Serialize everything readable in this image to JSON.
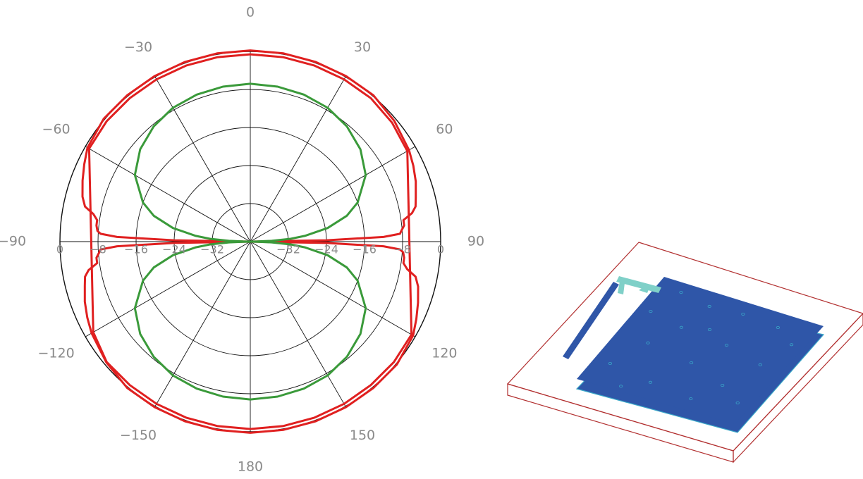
{
  "chart_data": {
    "type": "polar-line",
    "angle_unit": "degrees",
    "angle_zero": "top",
    "angle_direction": "clockwise",
    "angle_ticks": [
      0,
      30,
      60,
      90,
      120,
      150,
      180,
      -150,
      -120,
      -90,
      -60,
      -30
    ],
    "angle_tick_labels": [
      "0",
      "30",
      "60",
      "90",
      "120",
      "150",
      "180",
      "−150",
      "−120",
      "−90",
      "−60",
      "−30"
    ],
    "radial_range": [
      -40,
      0
    ],
    "radial_ticks": [
      0,
      -8,
      -16,
      -24,
      -32
    ],
    "radial_tick_labels": [
      "0",
      "−8",
      "−16",
      "−24",
      "−32"
    ],
    "grid": true,
    "series": [
      {
        "color": "#e02020",
        "angles": [
          0,
          10,
          20,
          30,
          40,
          50,
          60,
          65,
          70,
          75,
          78,
          80,
          82,
          84,
          86,
          87,
          88,
          89,
          90,
          91,
          92,
          93,
          94,
          96,
          98,
          100,
          102,
          105,
          110,
          115,
          120,
          130,
          140,
          150,
          160,
          170,
          180,
          190,
          200,
          210,
          220,
          230,
          240,
          245,
          250,
          255,
          258,
          260,
          262,
          264,
          266,
          267,
          268,
          269,
          270,
          271,
          272,
          273,
          274,
          276,
          278,
          280,
          282,
          285,
          290,
          295,
          300,
          310,
          320,
          330,
          340,
          350
        ],
        "values": [
          0.2,
          0.2,
          0.2,
          0.2,
          0.2,
          -0.5,
          -1.5,
          -2.2,
          -3.0,
          -4.0,
          -4.5,
          -5.5,
          -7.5,
          -7.5,
          -8.2,
          -8.5,
          -12,
          -24,
          -40,
          -24,
          -12,
          -8.5,
          -7.8,
          -7.5,
          -7.5,
          -6.5,
          -4.5,
          -3.5,
          -2.5,
          -1.5,
          -0.5,
          0.2,
          0.2,
          0.2,
          0.2,
          0.2,
          0.2,
          0.2,
          0.2,
          0.2,
          0.2,
          -0.5,
          -1.5,
          -2.2,
          -3.0,
          -4.0,
          -4.5,
          -5.5,
          -7.5,
          -7.5,
          -8.2,
          -8.5,
          -12,
          -24,
          -40,
          -24,
          -12,
          -8.5,
          -7.8,
          -7.5,
          -7.5,
          -6.5,
          -4.5,
          -3.5,
          -2.5,
          -1.5,
          -0.5,
          0.2,
          0.2,
          0.2,
          0.2,
          0.2
        ]
      },
      {
        "color": "#e02020",
        "angles": [
          0,
          10,
          20,
          30,
          40,
          50,
          60,
          120,
          130,
          140,
          150,
          160,
          170,
          180,
          190,
          200,
          210,
          220,
          230,
          240,
          300,
          310,
          320,
          330,
          340,
          350
        ],
        "values": [
          -0.6,
          -0.6,
          -0.6,
          -0.6,
          -0.6,
          -1.1,
          -1.9,
          -0.9,
          -0.6,
          -0.6,
          -0.6,
          -0.6,
          -0.6,
          -0.6,
          -0.6,
          -0.6,
          -0.6,
          -0.6,
          -0.6,
          -1.9,
          -0.9,
          -0.6,
          -0.6,
          -0.6,
          -0.6,
          -0.6
        ]
      },
      {
        "color": "#3a9a3a",
        "angles": [
          0,
          10,
          20,
          30,
          40,
          50,
          60,
          70,
          75,
          80,
          84,
          86,
          88,
          89,
          90,
          91,
          92,
          94,
          96,
          100,
          105,
          110,
          120,
          130,
          140,
          150,
          160,
          170,
          180,
          190,
          200,
          210,
          220,
          230,
          240,
          250,
          255,
          260,
          264,
          266,
          268,
          269,
          270,
          271,
          272,
          274,
          276,
          280,
          285,
          290,
          300,
          310,
          320,
          330,
          340,
          350
        ],
        "values": [
          -6.8,
          -6.9,
          -7.1,
          -7.5,
          -8.4,
          -9.8,
          -12.0,
          -16.0,
          -19.0,
          -23.5,
          -28.5,
          -31.5,
          -35.5,
          -38.5,
          -40,
          -38.5,
          -35.5,
          -31.5,
          -28.5,
          -23.5,
          -19.0,
          -16.0,
          -12.0,
          -9.8,
          -8.4,
          -7.5,
          -7.1,
          -6.9,
          -6.8,
          -6.9,
          -7.1,
          -7.5,
          -8.4,
          -9.8,
          -12.0,
          -16.0,
          -19.0,
          -23.5,
          -28.5,
          -31.5,
          -35.5,
          -38.5,
          -40,
          -38.5,
          -35.5,
          -31.5,
          -28.5,
          -23.5,
          -19.0,
          -16.0,
          -12.0,
          -9.8,
          -8.4,
          -7.5,
          -7.1,
          -6.9
        ]
      }
    ]
  },
  "model_3d": {
    "substrate_outline_color": "#b23030",
    "patch_color": "#2f56a8",
    "patch_edge_color": "#3aa8c8",
    "feed_highlight_color": "#7fd0c8"
  }
}
